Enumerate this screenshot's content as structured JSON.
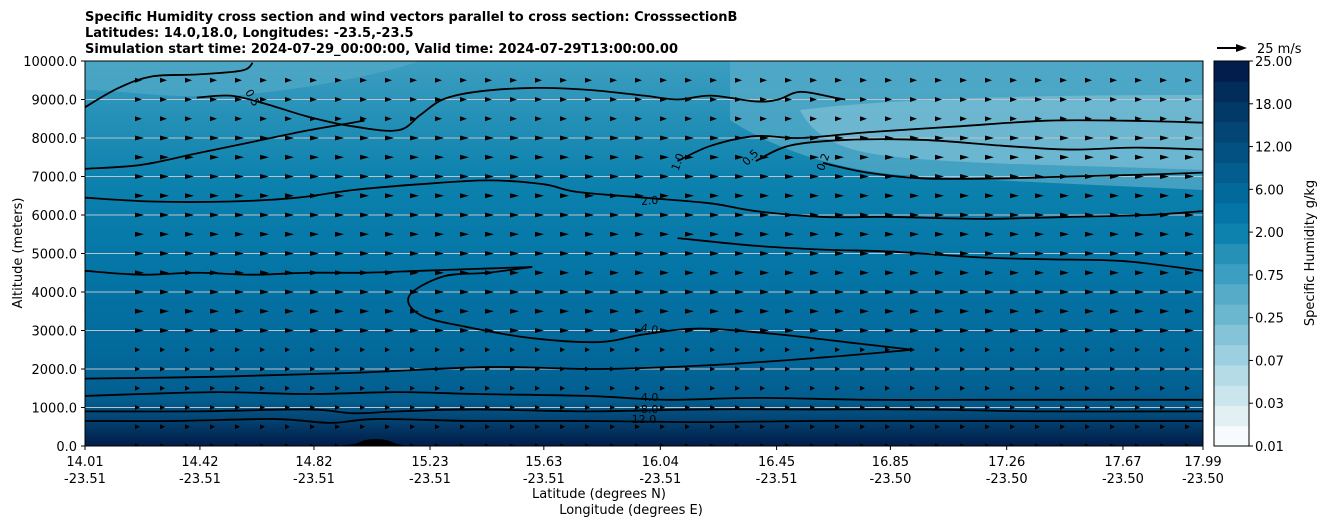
{
  "chart_data": {
    "type": "contour",
    "title_lines": [
      "Specific Humidity cross section and wind vectors parallel to cross section: CrosssectionB",
      "Latitudes: 14.0,18.0, Longitudes: -23.5,-23.5",
      "Simulation start time: 2024-07-29_00:00:00, Valid time: 2024-07-29T13:00:00.00"
    ],
    "ylabel": "Altitude (meters)",
    "xlabel_lat": "Latitude (degrees N)",
    "xlabel_lon": "Longitude (degrees E)",
    "ylim": [
      0,
      10000
    ],
    "y_ticks": [
      "0.0",
      "1000.0",
      "2000.0",
      "3000.0",
      "4000.0",
      "5000.0",
      "6000.0",
      "7000.0",
      "8000.0",
      "9000.0",
      "10000.0"
    ],
    "x_ticks": [
      {
        "lat": "14.01",
        "lon": "-23.51"
      },
      {
        "lat": "14.42",
        "lon": "-23.51"
      },
      {
        "lat": "14.82",
        "lon": "-23.51"
      },
      {
        "lat": "15.23",
        "lon": "-23.51"
      },
      {
        "lat": "15.63",
        "lon": "-23.51"
      },
      {
        "lat": "16.04",
        "lon": "-23.51"
      },
      {
        "lat": "16.45",
        "lon": "-23.51"
      },
      {
        "lat": "16.85",
        "lon": "-23.50"
      },
      {
        "lat": "17.26",
        "lon": "-23.50"
      },
      {
        "lat": "17.67",
        "lon": "-23.50"
      },
      {
        "lat": "17.99",
        "lon": "-23.50"
      }
    ],
    "colorbar": {
      "label": "Specific Humidity g/kg",
      "tick_labels": [
        "0.01",
        "0.03",
        "0.07",
        "0.25",
        "0.75",
        "2.00",
        "6.00",
        "12.00",
        "18.00",
        "25.00"
      ],
      "colors": [
        "#f7fbfd",
        "#e2f0f4",
        "#cbe5ec",
        "#b4dbe6",
        "#9ccfdf",
        "#85c3d8",
        "#6cb7d0",
        "#56abc8",
        "#3c9ec0",
        "#2690b7",
        "#0d82ae",
        "#0475a6",
        "#03699b",
        "#035d8f",
        "#035182",
        "#034574",
        "#023966",
        "#022c59",
        "#021d4b"
      ]
    },
    "quiver_key": {
      "label": "25 m/s",
      "speed": 25
    },
    "contour_labels": [
      {
        "text": "0.5",
        "x": 0.15,
        "y": 9050,
        "rot": 60
      },
      {
        "text": "1.0",
        "x": 0.53,
        "y": 7380,
        "rot": -70
      },
      {
        "text": "0.5",
        "x": 0.595,
        "y": 7500,
        "rot": -45
      },
      {
        "text": "0.2",
        "x": 0.66,
        "y": 7380,
        "rot": -70
      },
      {
        "text": "2.0",
        "x": 0.505,
        "y": 6380,
        "rot": -5
      },
      {
        "text": "4.0",
        "x": 0.505,
        "y": 3050,
        "rot": 10
      },
      {
        "text": "4.0",
        "x": 0.505,
        "y": 1270,
        "rot": 0
      },
      {
        "text": "8.0",
        "x": 0.505,
        "y": 960,
        "rot": 0
      },
      {
        "text": "12.0",
        "x": 0.5,
        "y": 700,
        "rot": 0
      }
    ],
    "contours": [
      {
        "level": 0.5,
        "points": [
          [
            0,
            8800
          ],
          [
            0.03,
            9300
          ],
          [
            0.06,
            9600
          ],
          [
            0.1,
            9650
          ],
          [
            0.14,
            9750
          ],
          [
            0.15,
            9950
          ]
        ]
      },
      {
        "level": 0.5,
        "points": [
          [
            0.1,
            9050
          ],
          [
            0.13,
            9100
          ],
          [
            0.16,
            8900
          ],
          [
            0.2,
            8550
          ],
          [
            0.24,
            8300
          ],
          [
            0.28,
            8200
          ],
          [
            0.3,
            8600
          ],
          [
            0.32,
            9000
          ],
          [
            0.35,
            9200
          ],
          [
            0.4,
            9300
          ],
          [
            0.45,
            9250
          ],
          [
            0.5,
            9100
          ],
          [
            0.53,
            9000
          ],
          [
            0.56,
            9100
          ],
          [
            0.6,
            8950
          ],
          [
            0.62,
            9000
          ],
          [
            0.64,
            9200
          ],
          [
            0.67,
            9050
          ],
          [
            0.68,
            9000
          ]
        ]
      },
      {
        "level": 0.5,
        "points": [
          [
            0,
            7200
          ],
          [
            0.05,
            7300
          ],
          [
            0.1,
            7600
          ],
          [
            0.15,
            7900
          ],
          [
            0.2,
            8200
          ],
          [
            0.25,
            8450
          ]
        ]
      },
      {
        "level": 1.0,
        "points": [
          [
            0,
            6450
          ],
          [
            0.06,
            6350
          ],
          [
            0.13,
            6350
          ],
          [
            0.19,
            6450
          ],
          [
            0.24,
            6650
          ],
          [
            0.3,
            6800
          ],
          [
            0.36,
            6900
          ],
          [
            0.41,
            6800
          ],
          [
            0.44,
            6600
          ],
          [
            0.5,
            6450
          ],
          [
            0.56,
            6300
          ],
          [
            0.6,
            6100
          ],
          [
            0.66,
            5950
          ],
          [
            0.72,
            5950
          ],
          [
            0.8,
            5900
          ],
          [
            0.88,
            5950
          ],
          [
            0.95,
            6000
          ],
          [
            1,
            6100
          ]
        ]
      },
      {
        "level": 0.5,
        "points": [
          [
            0.53,
            7400
          ],
          [
            0.56,
            7800
          ],
          [
            0.6,
            8050
          ],
          [
            0.64,
            8000
          ],
          [
            0.7,
            8150
          ],
          [
            0.78,
            8300
          ],
          [
            0.86,
            8450
          ],
          [
            0.93,
            8450
          ],
          [
            1,
            8400
          ]
        ]
      },
      {
        "level": 0.2,
        "points": [
          [
            0.6,
            7400
          ],
          [
            0.63,
            7800
          ],
          [
            0.68,
            7950
          ],
          [
            0.75,
            7950
          ],
          [
            0.82,
            7800
          ],
          [
            0.88,
            7700
          ],
          [
            0.94,
            7750
          ],
          [
            1,
            7700
          ]
        ]
      },
      {
        "level": 0.2,
        "points": [
          [
            0.66,
            7350
          ],
          [
            0.7,
            7100
          ],
          [
            0.75,
            6950
          ],
          [
            0.82,
            6950
          ],
          [
            0.88,
            7000
          ],
          [
            0.95,
            7050
          ],
          [
            1,
            7100
          ]
        ]
      },
      {
        "level": 2.0,
        "points": [
          [
            0,
            4550
          ],
          [
            0.05,
            4450
          ],
          [
            0.1,
            4500
          ],
          [
            0.15,
            4450
          ],
          [
            0.2,
            4500
          ],
          [
            0.25,
            4500
          ],
          [
            0.3,
            4550
          ],
          [
            0.35,
            4600
          ],
          [
            0.4,
            4650
          ]
        ]
      },
      {
        "level": 4.0,
        "points": [
          [
            0.4,
            4650
          ],
          [
            0.36,
            4500
          ],
          [
            0.32,
            4400
          ],
          [
            0.29,
            3900
          ],
          [
            0.3,
            3400
          ],
          [
            0.34,
            3100
          ],
          [
            0.4,
            2800
          ],
          [
            0.46,
            2700
          ],
          [
            0.5,
            2900
          ],
          [
            0.55,
            3050
          ],
          [
            0.62,
            2900
          ],
          [
            0.68,
            2700
          ],
          [
            0.74,
            2500
          ]
        ]
      },
      {
        "level": 4.0,
        "points": [
          [
            0.74,
            2500
          ],
          [
            0.66,
            2300
          ],
          [
            0.56,
            2100
          ],
          [
            0.46,
            2000
          ],
          [
            0.36,
            2050
          ],
          [
            0.24,
            1900
          ],
          [
            0.12,
            1800
          ],
          [
            0,
            1750
          ]
        ]
      },
      {
        "level": 2.0,
        "points": [
          [
            0.53,
            5400
          ],
          [
            0.6,
            5200
          ],
          [
            0.66,
            5100
          ],
          [
            0.72,
            5050
          ],
          [
            0.8,
            4900
          ],
          [
            0.86,
            4850
          ],
          [
            0.93,
            4800
          ],
          [
            1,
            4550
          ]
        ]
      },
      {
        "level": 4.0,
        "points": [
          [
            0,
            1300
          ],
          [
            0.05,
            1350
          ],
          [
            0.12,
            1400
          ],
          [
            0.2,
            1350
          ],
          [
            0.28,
            1400
          ],
          [
            0.35,
            1350
          ],
          [
            0.45,
            1300
          ],
          [
            0.52,
            1200
          ],
          [
            0.6,
            1250
          ],
          [
            0.7,
            1200
          ],
          [
            0.8,
            1200
          ],
          [
            0.9,
            1200
          ],
          [
            1,
            1200
          ]
        ]
      },
      {
        "level": 8.0,
        "points": [
          [
            0,
            900
          ],
          [
            0.1,
            900
          ],
          [
            0.2,
            950
          ],
          [
            0.24,
            850
          ],
          [
            0.28,
            900
          ],
          [
            0.35,
            950
          ],
          [
            0.45,
            900
          ],
          [
            0.55,
            950
          ],
          [
            0.65,
            950
          ],
          [
            0.75,
            950
          ],
          [
            0.85,
            900
          ],
          [
            1,
            900
          ]
        ]
      },
      {
        "level": 12.0,
        "points": [
          [
            0,
            650
          ],
          [
            0.08,
            650
          ],
          [
            0.17,
            700
          ],
          [
            0.22,
            600
          ],
          [
            0.26,
            700
          ],
          [
            0.35,
            650
          ],
          [
            0.45,
            650
          ],
          [
            0.55,
            620
          ],
          [
            0.65,
            650
          ],
          [
            0.75,
            650
          ],
          [
            0.85,
            650
          ],
          [
            1,
            650
          ]
        ]
      }
    ],
    "terrain": {
      "points": [
        [
          0.22,
          0
        ],
        [
          0.24,
          50
        ],
        [
          0.25,
          150
        ],
        [
          0.26,
          180
        ],
        [
          0.27,
          150
        ],
        [
          0.28,
          50
        ],
        [
          0.29,
          0
        ]
      ]
    }
  }
}
